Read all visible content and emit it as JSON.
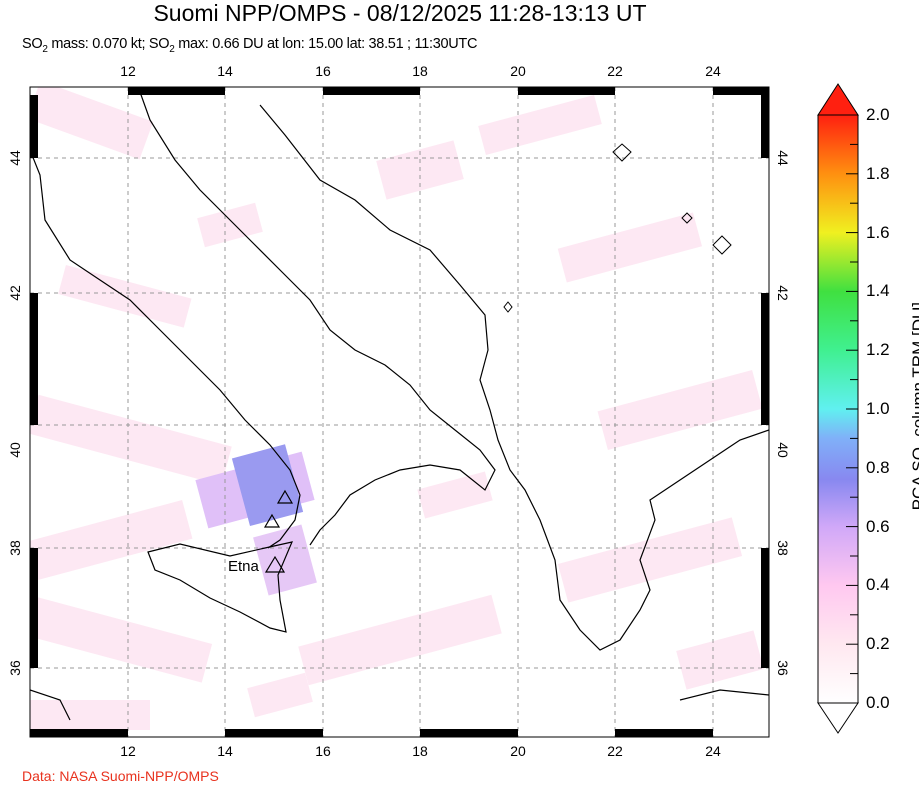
{
  "header": {
    "title": "Suomi NPP/OMPS - 08/12/2025 11:28-13:13 UT",
    "subtitle_parts": [
      "SO",
      "2",
      " mass: 0.070 kt; SO",
      "2",
      " max: 0.66 DU at lon: 15.00 lat: 38.51 ; 11:30UTC"
    ]
  },
  "map": {
    "lon_ticks": [
      "12",
      "14",
      "16",
      "18",
      "20",
      "22",
      "24"
    ],
    "lat_ticks": [
      "44",
      "42",
      "40",
      "38",
      "36"
    ],
    "volcano_label": "Etna",
    "coast_color": "#000000",
    "so2_max_color": "#9a9af0"
  },
  "colorbar": {
    "labels": [
      "2.0",
      "1.8",
      "1.6",
      "1.4",
      "1.2",
      "1.0",
      "0.8",
      "0.6",
      "0.4",
      "0.2",
      "0.0"
    ],
    "title_parts": [
      "PCA SO",
      "2",
      " column TRM [DU]"
    ],
    "range": [
      0.0,
      2.0
    ]
  },
  "footer": {
    "credit": "Data: NASA Suomi-NPP/OMPS"
  }
}
